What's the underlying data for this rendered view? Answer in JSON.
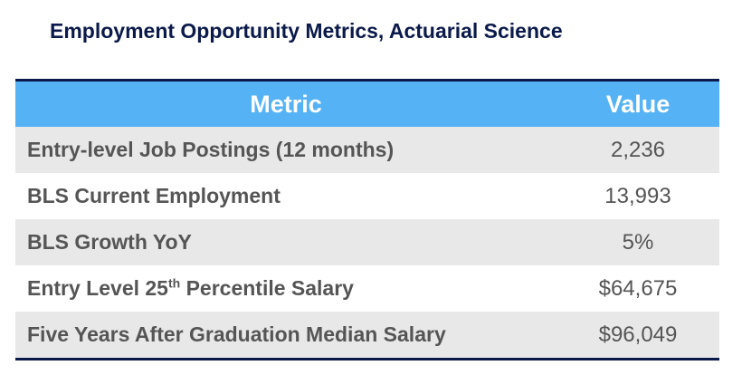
{
  "title": "Employment Opportunity Metrics, Actuarial Science",
  "table": {
    "headers": {
      "metric": "Metric",
      "value": "Value"
    },
    "rows": [
      {
        "metric": "Entry-level Job Postings (12 months)",
        "value": "2,236"
      },
      {
        "metric": "BLS Current Employment",
        "value": "13,993"
      },
      {
        "metric": "BLS Growth YoY",
        "value": "5%"
      },
      {
        "metric_pre": "Entry Level 25",
        "metric_sup": "th",
        "metric_post": " Percentile Salary",
        "value": "$64,675"
      },
      {
        "metric": "Five Years After Graduation Median Salary",
        "value": "$96,049"
      }
    ]
  },
  "colors": {
    "header_bg": "#55b3f5",
    "rule": "#0b1a4a",
    "row_shade": "#e8e8e8",
    "text": "#555555"
  }
}
